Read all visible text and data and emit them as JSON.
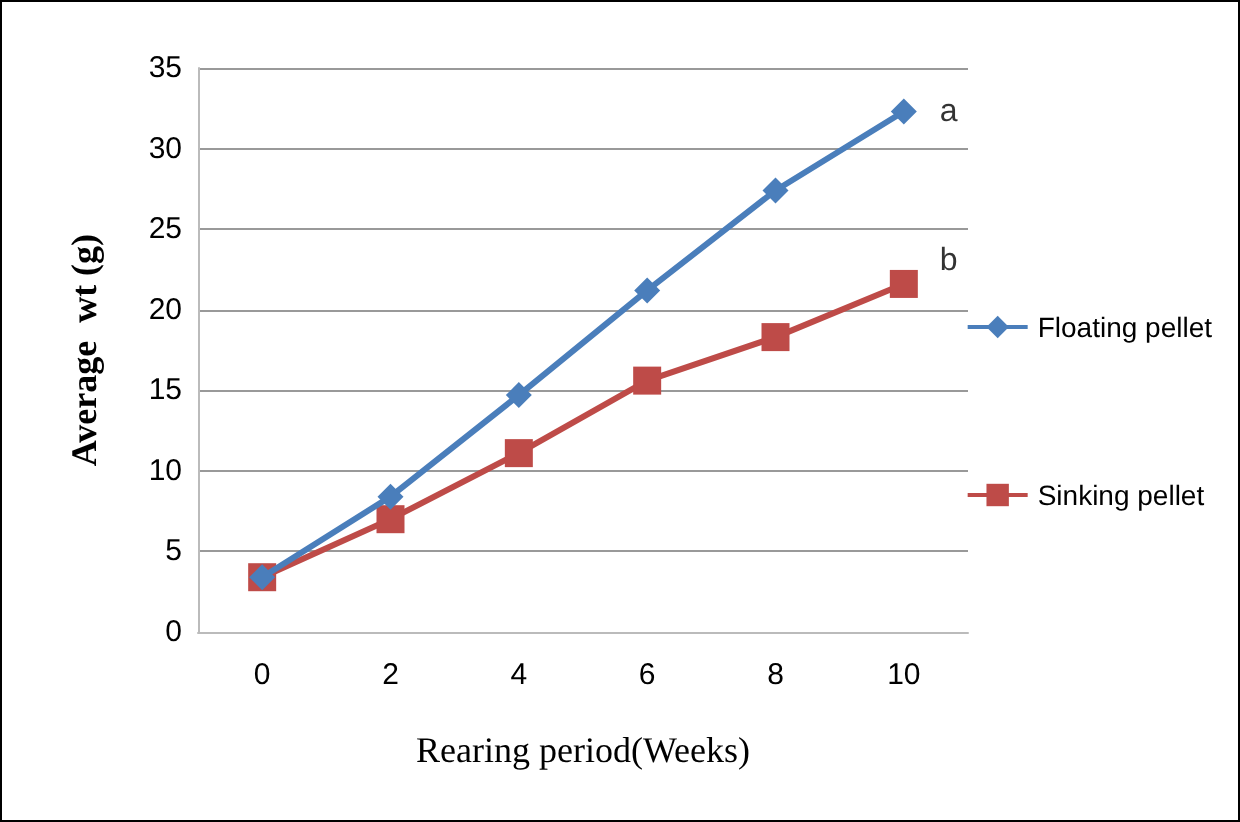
{
  "chart_data": {
    "type": "line",
    "xlabel": "Rearing period(Weeks)",
    "ylabel": "Average  wt (g)",
    "categories": [
      "0",
      "2",
      "4",
      "6",
      "8",
      "10"
    ],
    "series": [
      {
        "name": "Floating pellet",
        "color": "#4a7ebb",
        "marker": "diamond",
        "values": [
          3.4,
          8.4,
          14.7,
          21.2,
          27.4,
          32.3
        ]
      },
      {
        "name": "Sinking pellet",
        "color": "#be4b48",
        "marker": "square",
        "values": [
          3.4,
          7.0,
          11.1,
          15.6,
          18.3,
          21.6
        ]
      }
    ],
    "annotations": [
      {
        "text": "a",
        "x": "10",
        "y": 32.3
      },
      {
        "text": "b",
        "x": "10",
        "y": 23
      }
    ],
    "ylim": [
      0,
      35
    ],
    "yticks": [
      0,
      5,
      10,
      15,
      20,
      25,
      30,
      35
    ],
    "grid": "y",
    "legend": "right",
    "line_style": "solid"
  }
}
